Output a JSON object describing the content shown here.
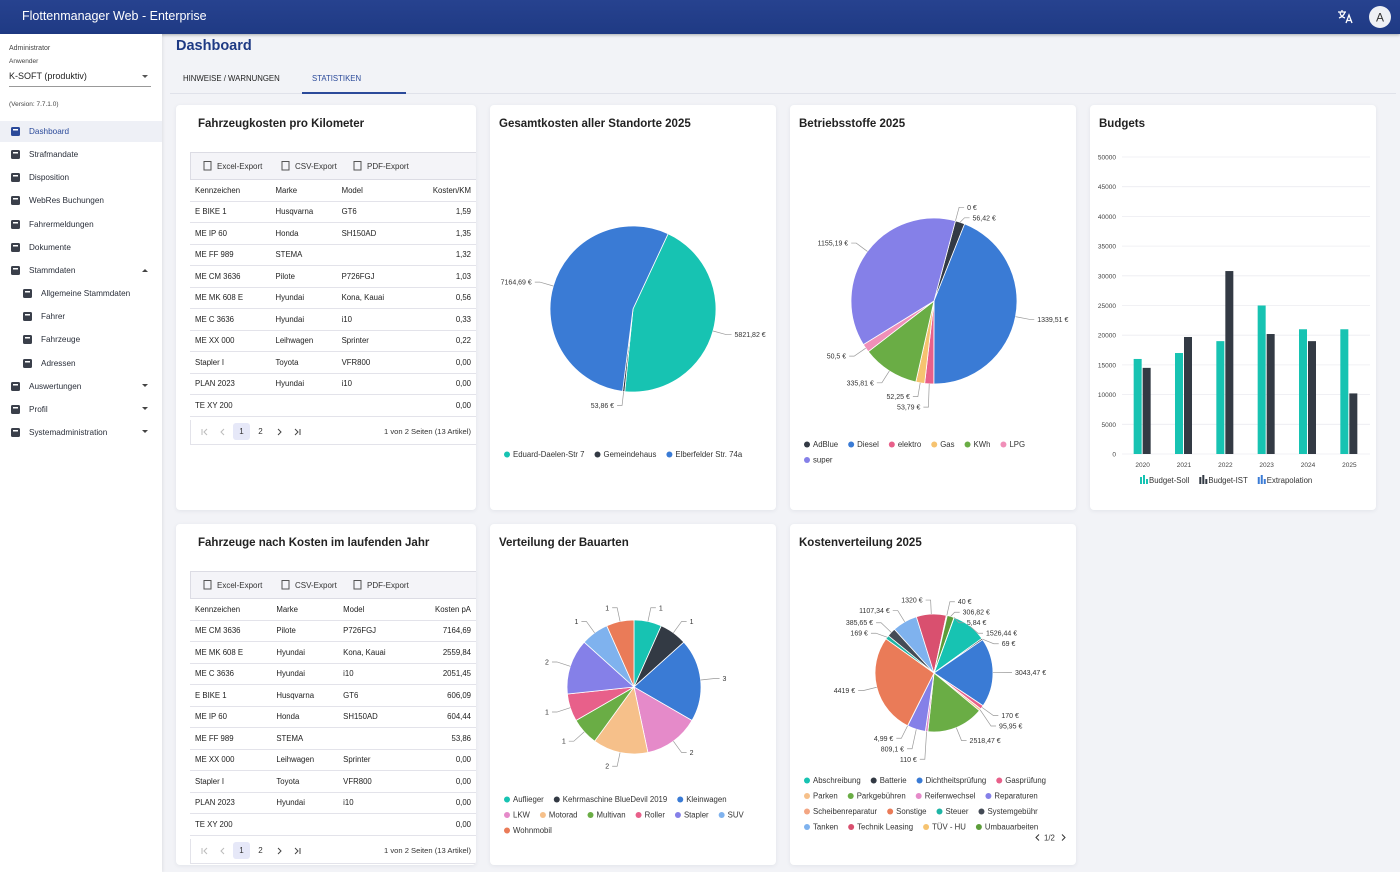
{
  "header": {
    "title": "Flottenmanager Web - Enterprise",
    "avatar": "A"
  },
  "sidebar": {
    "role": "Administrator",
    "user_label": "Anwender",
    "tenant": "K-SOFT (produktiv)",
    "version": "(Version: 7.7.1.0)",
    "menu": [
      {
        "label": "Dashboard",
        "active": true
      },
      {
        "label": "Strafmandate"
      },
      {
        "label": "Disposition"
      },
      {
        "label": "WebRes Buchungen"
      },
      {
        "label": "Fahrermeldungen"
      },
      {
        "label": "Dokumente"
      },
      {
        "label": "Stammdaten",
        "expanded": true,
        "children": [
          "Allgemeine Stammdaten",
          "Fahrer",
          "Fahrzeuge",
          "Adressen"
        ]
      },
      {
        "label": "Auswertungen",
        "expanded": false
      },
      {
        "label": "Profil",
        "expanded": false
      },
      {
        "label": "Systemadministration",
        "expanded": false
      }
    ]
  },
  "page": {
    "title": "Dashboard",
    "tabs": [
      "HINWEISE / WARNUNGEN",
      "STATISTIKEN"
    ],
    "active_tab": 1
  },
  "tables": [
    {
      "title": "Fahrzeugkosten pro Kilometer",
      "exports": [
        "Excel-Export",
        "CSV-Export",
        "PDF-Export"
      ],
      "columns": [
        "Kennzeichen",
        "Marke",
        "Model",
        "Kosten/KM"
      ],
      "rows": [
        [
          "E BIKE 1",
          "Husqvarna",
          "GT6",
          "1,59"
        ],
        [
          "ME IP 60",
          "Honda",
          "SH150AD",
          "1,35"
        ],
        [
          "ME FF 989",
          "STEMA",
          null,
          "1,32"
        ],
        [
          "ME CM 3636",
          "Pilote",
          "P726FGJ",
          "1,03"
        ],
        [
          "ME MK 608 E",
          "Hyundai",
          "Kona, Kauai",
          "0,56"
        ],
        [
          "ME C 3636",
          "Hyundai",
          "i10",
          "0,33"
        ],
        [
          "ME XX 000",
          "Leihwagen",
          "Sprinter",
          "0,22"
        ],
        [
          "Stapler I",
          "Toyota",
          "VFR800",
          "0,00"
        ],
        [
          "PLAN 2023",
          "Hyundai",
          "i10",
          "0,00"
        ],
        [
          "TE XY 200",
          null,
          null,
          "0,00"
        ]
      ],
      "pager": {
        "pages": [
          "1",
          "2"
        ],
        "current": 0,
        "info": "1 von 2 Seiten (13 Artikel)"
      }
    },
    {
      "title": "Fahrzeuge nach Kosten im laufenden Jahr",
      "exports": [
        "Excel-Export",
        "CSV-Export",
        "PDF-Export"
      ],
      "columns": [
        "Kennzeichen",
        "Marke",
        "Model",
        "Kosten pA"
      ],
      "rows": [
        [
          "ME CM 3636",
          "Pilote",
          "P726FGJ",
          "7164,69"
        ],
        [
          "ME MK 608 E",
          "Hyundai",
          "Kona, Kauai",
          "2559,84"
        ],
        [
          "ME C 3636",
          "Hyundai",
          "i10",
          "2051,45"
        ],
        [
          "E BIKE 1",
          "Husqvarna",
          "GT6",
          "606,09"
        ],
        [
          "ME IP 60",
          "Honda",
          "SH150AD",
          "604,44"
        ],
        [
          "ME FF 989",
          "STEMA",
          null,
          "53,86"
        ],
        [
          "ME XX 000",
          "Leihwagen",
          "Sprinter",
          "0,00"
        ],
        [
          "Stapler I",
          "Toyota",
          "VFR800",
          "0,00"
        ],
        [
          "PLAN 2023",
          "Hyundai",
          "i10",
          "0,00"
        ],
        [
          "TE XY 200",
          null,
          null,
          "0,00"
        ]
      ],
      "pager": {
        "pages": [
          "1",
          "2"
        ],
        "current": 0,
        "info": "1 von 2 Seiten (13 Artikel)"
      }
    }
  ],
  "charts": [
    {
      "type": "pie",
      "title": "Gesamtkosten aller Standorte 2025",
      "categories": [
        "Eduard-Daelen-Str 7",
        "Gemeindehaus",
        "Elberfelder Str. 74a"
      ],
      "values": [
        5821.82,
        53.86,
        7164.69
      ],
      "value_labels": [
        "5821,82 €",
        "53,86 €",
        "7164,69 €"
      ],
      "colors": [
        "#17c3b2",
        "#333a44",
        "#3a7bd5"
      ]
    },
    {
      "type": "pie",
      "title": "Betriebsstoffe 2025",
      "categories": [
        null,
        "AdBlue",
        "Diesel",
        "elektro",
        "Gas",
        "KWh",
        "LPG",
        "super"
      ],
      "values": [
        0,
        56.42,
        1339.51,
        53.79,
        52.25,
        335.81,
        50.5,
        1155.19
      ],
      "value_labels": [
        "0 €",
        "56,42 €",
        "1339,51 €",
        "53,79 €",
        "52,25 €",
        "335,81 €",
        "50,5 €",
        "1155,19 €"
      ],
      "colors": [
        "#999999",
        "#333a44",
        "#3a7bd5",
        "#e8608a",
        "#f6c370",
        "#6aad45",
        "#f08fb8",
        "#8580e8"
      ]
    },
    {
      "type": "bar",
      "title": "Budgets",
      "categories": [
        "2020",
        "2021",
        "2022",
        "2023",
        "2024",
        "2025"
      ],
      "series": [
        {
          "name": "Budget-Soll",
          "color": "#17c3b2",
          "values": [
            16000,
            17000,
            19000,
            25000,
            21000,
            21000
          ]
        },
        {
          "name": "Budget-IST",
          "color": "#333a44",
          "values": [
            14500,
            19700,
            30800,
            20200,
            19000,
            10200
          ]
        },
        {
          "name": "Extrapolation",
          "color": "#3a7bd5",
          "values": [
            null,
            null,
            null,
            null,
            null,
            null
          ]
        }
      ],
      "ylim": [
        0,
        50000
      ],
      "yticks": [
        0,
        5000,
        10000,
        15000,
        20000,
        25000,
        30000,
        35000,
        40000,
        45000,
        50000
      ],
      "grid": true
    },
    {
      "type": "pie",
      "title": "Verteilung der Bauarten",
      "categories": [
        "Auflieger",
        "Kehrmaschine BlueDevil 2019",
        "Kleinwagen",
        "LKW",
        "Motorad",
        "Multivan",
        "Roller",
        "Stapler",
        "SUV",
        "Wohnmobil"
      ],
      "values": [
        1,
        1,
        3,
        2,
        2,
        1,
        1,
        2,
        1,
        1
      ],
      "colors": [
        "#17c3b2",
        "#333a44",
        "#3a7bd5",
        "#e58ac9",
        "#f6c08a",
        "#6aad45",
        "#e8608a",
        "#8580e8",
        "#7fb2ee",
        "#ea7b58"
      ]
    },
    {
      "type": "pie",
      "title": "Kostenverteilung 2025",
      "categories": [
        "Abschreibung",
        "Batterie",
        "Dichtheitsprüfung",
        "Gasprüfung",
        "Parken",
        "Parkgebühren",
        "Reifenwechsel",
        "Reparaturen",
        "Scheibenreparatur",
        "Sonstige",
        "Steuer",
        "Systemgebühr",
        "Tanken",
        "Technik Leasing",
        "TÜV - HU",
        "Umbauarbeiten",
        null
      ],
      "values": [
        1526.44,
        69,
        3043.47,
        170,
        95.95,
        2518.47,
        110,
        809.1,
        4.99,
        4419,
        169,
        385.65,
        1107.34,
        1320,
        40,
        306.82,
        5.84
      ],
      "value_labels": [
        "1526,44 €",
        "69 €",
        "3043,47 €",
        "170 €",
        "95,95 €",
        "2518,47 €",
        "110 €",
        "809,1 €",
        "4,99 €",
        "4419 €",
        "169 €",
        "385,65 €",
        "1107,34 €",
        "1320 €",
        "40 €",
        "306,82 €",
        "5,84 €"
      ],
      "colors": [
        "#17c3b2",
        "#333a44",
        "#3a7bd5",
        "#e8608a",
        "#f6c08a",
        "#6aad45",
        "#e58ac9",
        "#8580e8",
        "#f3a683",
        "#ea7b58",
        "#1fb5a5",
        "#444b55",
        "#7fb2ee",
        "#d9506f",
        "#f6c370",
        "#5c9d3a",
        "#9fc7f2"
      ],
      "legend_page": "1/2"
    }
  ]
}
